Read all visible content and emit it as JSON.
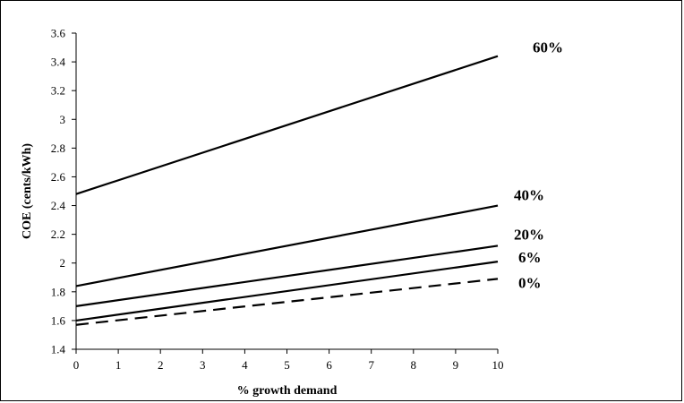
{
  "chart_data": {
    "type": "line",
    "title": "",
    "xlabel": "% growth demand",
    "ylabel": "COE (cents/kWh)",
    "xlim": [
      0,
      10
    ],
    "ylim": [
      1.4,
      3.6
    ],
    "x_ticks": [
      "0",
      "1",
      "2",
      "3",
      "4",
      "5",
      "6",
      "7",
      "8",
      "9",
      "10"
    ],
    "y_ticks": [
      "1.4",
      "1.6",
      "1.8",
      "2",
      "2.2",
      "2.4",
      "2.6",
      "2.8",
      "3",
      "3.2",
      "3.4",
      "3.6"
    ],
    "grid": false,
    "legend": "none",
    "x": [
      0,
      10
    ],
    "series": [
      {
        "name": "60%",
        "values": [
          2.48,
          3.44
        ],
        "style": "solid"
      },
      {
        "name": "40%",
        "values": [
          1.84,
          2.4
        ],
        "style": "solid"
      },
      {
        "name": "20%",
        "values": [
          1.7,
          2.12
        ],
        "style": "solid"
      },
      {
        "name": "6%",
        "values": [
          1.6,
          2.01
        ],
        "style": "solid"
      },
      {
        "name": "0%",
        "values": [
          1.57,
          1.89
        ],
        "style": "dashed"
      }
    ],
    "line_color": "#000000"
  }
}
